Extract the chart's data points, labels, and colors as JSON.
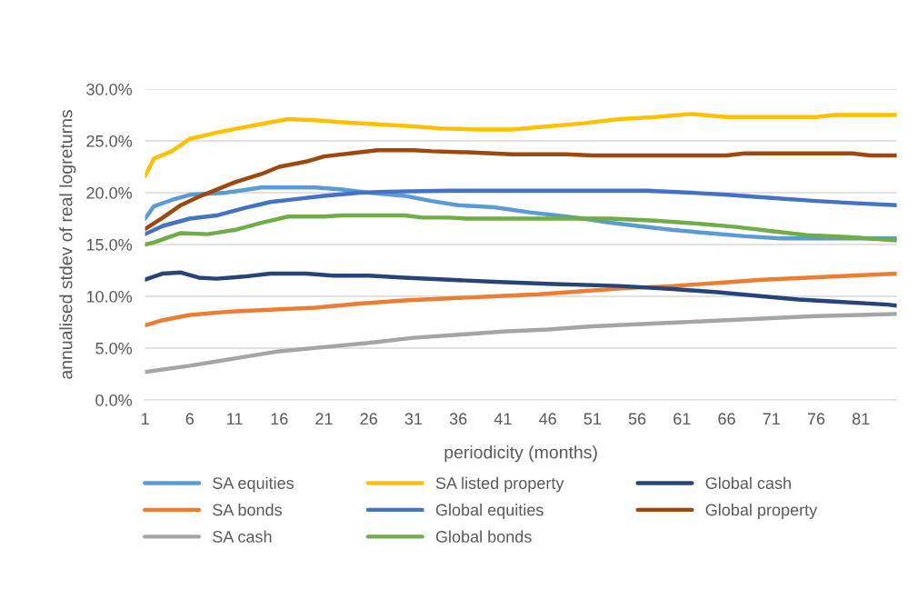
{
  "chart_data": {
    "type": "line",
    "xlabel": "periodicity (months)",
    "ylabel": "annualised stdev of real logreturns",
    "xlim": [
      1,
      85
    ],
    "xticks": [
      1,
      6,
      11,
      16,
      21,
      26,
      31,
      36,
      41,
      46,
      51,
      56,
      61,
      66,
      71,
      76,
      81
    ],
    "ylim": [
      0,
      30
    ],
    "yticks": [
      {
        "value": 0,
        "label": "0.0%"
      },
      {
        "value": 5,
        "label": "5.0%"
      },
      {
        "value": 10,
        "label": "10.0%"
      },
      {
        "value": 15,
        "label": "15.0%"
      },
      {
        "value": 20,
        "label": "20.0%"
      },
      {
        "value": 25,
        "label": "25.0%"
      },
      {
        "value": 30,
        "label": "30.0%"
      }
    ],
    "grid": "y",
    "legend": "bottom",
    "marker": "none",
    "line_style": "solid",
    "series": [
      {
        "name": "SA equities",
        "color": "#5b9bd5",
        "x": [
          1,
          2,
          4,
          6,
          10,
          14,
          20,
          23,
          26,
          30,
          33,
          36,
          40,
          44,
          47,
          50,
          53,
          56,
          60,
          64,
          68,
          72,
          85
        ],
        "values": [
          17.5,
          18.7,
          19.3,
          19.8,
          20.0,
          20.5,
          20.5,
          20.3,
          20.0,
          19.7,
          19.2,
          18.8,
          18.6,
          18.1,
          17.8,
          17.5,
          17.1,
          16.8,
          16.4,
          16.1,
          15.8,
          15.6,
          15.6
        ]
      },
      {
        "name": "SA bonds",
        "color": "#ed7d31",
        "x": [
          1,
          3,
          6,
          10,
          15,
          20,
          25,
          30,
          35,
          40,
          45,
          50,
          55,
          60,
          65,
          70,
          75,
          80,
          85
        ],
        "values": [
          7.2,
          7.7,
          8.2,
          8.5,
          8.7,
          8.9,
          9.3,
          9.6,
          9.8,
          10.0,
          10.2,
          10.5,
          10.8,
          11.0,
          11.3,
          11.6,
          11.8,
          12.0,
          12.2
        ]
      },
      {
        "name": "SA cash",
        "color": "#a5a5a5",
        "x": [
          1,
          6,
          11,
          16,
          21,
          26,
          31,
          36,
          41,
          46,
          51,
          56,
          61,
          66,
          71,
          76,
          81,
          85
        ],
        "values": [
          2.7,
          3.3,
          4.0,
          4.7,
          5.1,
          5.5,
          6.0,
          6.3,
          6.6,
          6.8,
          7.1,
          7.3,
          7.5,
          7.7,
          7.9,
          8.1,
          8.2,
          8.3
        ]
      },
      {
        "name": "SA listed property",
        "color": "#ffc000",
        "x": [
          1,
          2,
          4,
          6,
          9,
          12,
          15,
          17,
          20,
          23,
          27,
          31,
          34,
          38,
          42,
          46,
          50,
          54,
          58,
          62,
          66,
          76,
          78,
          85
        ],
        "values": [
          21.6,
          23.3,
          24.0,
          25.2,
          25.8,
          26.3,
          26.8,
          27.1,
          27.0,
          26.8,
          26.6,
          26.4,
          26.2,
          26.1,
          26.1,
          26.4,
          26.7,
          27.1,
          27.3,
          27.6,
          27.3,
          27.3,
          27.5,
          27.5
        ]
      },
      {
        "name": "Global equities",
        "color": "#4472c4",
        "x": [
          1,
          3,
          6,
          9,
          12,
          15,
          18,
          21,
          25,
          28,
          35,
          57,
          62,
          66,
          71,
          76,
          80,
          85
        ],
        "values": [
          16.0,
          16.8,
          17.5,
          17.8,
          18.5,
          19.1,
          19.4,
          19.7,
          20.0,
          20.1,
          20.2,
          20.2,
          20.0,
          19.8,
          19.5,
          19.2,
          19.0,
          18.8
        ]
      },
      {
        "name": "Global bonds",
        "color": "#70ad47",
        "x": [
          1,
          2,
          5,
          8,
          11,
          14,
          17,
          21,
          23,
          30,
          32,
          35,
          37,
          53,
          58,
          63,
          67,
          71,
          75,
          80,
          85
        ],
        "values": [
          15.0,
          15.2,
          16.1,
          16.0,
          16.4,
          17.1,
          17.7,
          17.7,
          17.8,
          17.8,
          17.6,
          17.6,
          17.5,
          17.5,
          17.3,
          17.0,
          16.7,
          16.3,
          15.9,
          15.7,
          15.4
        ]
      },
      {
        "name": "Global cash",
        "color": "#264478",
        "x": [
          1,
          3,
          5,
          7,
          9,
          12,
          15,
          19,
          22,
          26,
          30,
          35,
          40,
          46,
          54,
          60,
          65,
          70,
          74,
          78,
          84,
          85
        ],
        "values": [
          11.6,
          12.2,
          12.3,
          11.8,
          11.7,
          11.9,
          12.2,
          12.2,
          12.0,
          12.0,
          11.8,
          11.6,
          11.4,
          11.2,
          11.0,
          10.7,
          10.4,
          10.0,
          9.7,
          9.5,
          9.2,
          9.1
        ]
      },
      {
        "name": "Global property",
        "color": "#9e480e",
        "x": [
          1,
          3,
          5,
          7,
          9,
          11,
          14,
          16,
          19,
          21,
          25,
          27,
          31,
          33,
          37,
          42,
          48,
          51,
          66,
          68,
          80,
          82,
          85
        ],
        "values": [
          16.5,
          17.6,
          18.8,
          19.6,
          20.3,
          21.0,
          21.8,
          22.5,
          23.0,
          23.5,
          23.9,
          24.1,
          24.1,
          24.0,
          23.9,
          23.7,
          23.7,
          23.6,
          23.6,
          23.8,
          23.8,
          23.6,
          23.6
        ]
      }
    ]
  }
}
